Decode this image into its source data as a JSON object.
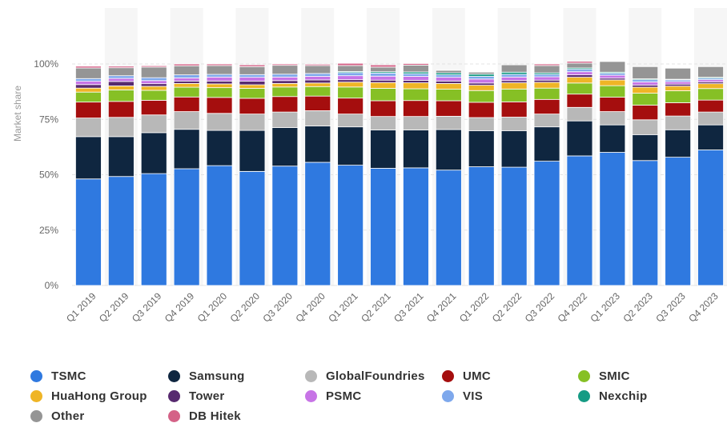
{
  "chart_data": {
    "type": "bar",
    "stacked": true,
    "title": "",
    "xlabel": "",
    "ylabel": "Market share",
    "ylim": [
      0,
      100
    ],
    "yticks": [
      "0%",
      "25%",
      "50%",
      "75%",
      "100%"
    ],
    "grid": true,
    "legend_position": "bottom",
    "categories": [
      "Q1 2019",
      "Q2 2019",
      "Q3 2019",
      "Q4 2019",
      "Q1 2020",
      "Q2 2020",
      "Q3 2020",
      "Q4 2020",
      "Q1 2021",
      "Q2 2021",
      "Q3 2021",
      "Q4 2021",
      "Q1 2022",
      "Q2 2022",
      "Q3 2022",
      "Q4 2022",
      "Q1 2023",
      "Q2 2023",
      "Q3 2023",
      "Q4 2023"
    ],
    "series": [
      {
        "name": "TSMC",
        "color": "#2f79e0",
        "values": [
          48.1,
          49.2,
          50.5,
          52.7,
          54.1,
          51.5,
          53.9,
          55.6,
          54.3,
          52.9,
          53.1,
          52.1,
          53.6,
          53.4,
          56.1,
          58.5,
          60.1,
          56.4,
          57.9,
          61.2
        ]
      },
      {
        "name": "Samsung",
        "color": "#0f2640",
        "values": [
          19.1,
          18.0,
          18.5,
          17.8,
          15.9,
          18.5,
          17.4,
          16.4,
          17.3,
          17.3,
          17.1,
          18.3,
          16.3,
          16.5,
          15.5,
          15.8,
          12.4,
          11.7,
          12.4,
          11.3
        ]
      },
      {
        "name": "GlobalFoundries",
        "color": "#b8b8b8",
        "values": [
          8.4,
          8.7,
          8.0,
          8.0,
          7.7,
          7.4,
          7.0,
          6.9,
          5.8,
          6.1,
          6.1,
          6.0,
          5.9,
          6.1,
          5.8,
          6.1,
          6.0,
          6.7,
          6.2,
          5.8
        ]
      },
      {
        "name": "UMC",
        "color": "#a50e0e",
        "values": [
          7.2,
          7.2,
          6.6,
          6.6,
          7.2,
          7.1,
          7.0,
          6.6,
          7.2,
          7.1,
          7.2,
          7.0,
          6.9,
          6.9,
          6.6,
          6.0,
          6.5,
          6.6,
          6.0,
          5.4
        ]
      },
      {
        "name": "SMIC",
        "color": "#86c025",
        "values": [
          4.5,
          5.2,
          4.5,
          4.4,
          4.4,
          4.5,
          4.3,
          4.3,
          5.0,
          5.6,
          5.3,
          5.2,
          5.3,
          5.8,
          5.1,
          5.0,
          5.2,
          5.4,
          5.4,
          5.2
        ]
      },
      {
        "name": "HuaHong Group",
        "color": "#efb526",
        "values": [
          1.8,
          1.8,
          1.8,
          1.7,
          1.7,
          1.6,
          1.6,
          1.6,
          2.2,
          2.6,
          2.7,
          2.6,
          2.4,
          2.8,
          2.6,
          2.6,
          2.6,
          2.7,
          2.1,
          2.2
        ]
      },
      {
        "name": "Tower",
        "color": "#572a6f",
        "values": [
          1.6,
          2.0,
          1.2,
          1.1,
          1.3,
          1.6,
          1.3,
          1.4,
          1.1,
          1.1,
          1.1,
          1.1,
          1.0,
          1.0,
          1.0,
          1.1,
          0.8,
          1.0,
          0.9,
          0.8
        ]
      },
      {
        "name": "PSMC",
        "color": "#c774e6",
        "values": [
          1.5,
          1.4,
          1.4,
          1.4,
          1.8,
          1.8,
          1.6,
          1.6,
          1.8,
          1.8,
          1.8,
          1.7,
          1.8,
          1.6,
          1.5,
          1.4,
          1.3,
          1.4,
          1.1,
          1.0
        ]
      },
      {
        "name": "VIS",
        "color": "#7ea8ec",
        "values": [
          1.2,
          1.2,
          1.3,
          1.4,
          1.2,
          1.2,
          1.3,
          1.3,
          1.4,
          1.4,
          1.2,
          1.1,
          1.2,
          1.2,
          1.1,
          1.1,
          0.9,
          1.0,
          0.8,
          0.7
        ]
      },
      {
        "name": "Nexchip",
        "color": "#169b84",
        "values": [
          0.0,
          0.0,
          0.0,
          0.0,
          0.0,
          0.0,
          0.0,
          0.0,
          0.5,
          0.6,
          0.8,
          0.9,
          1.0,
          1.0,
          0.7,
          0.6,
          0.5,
          0.4,
          0.3,
          0.4
        ]
      },
      {
        "name": "Other",
        "color": "#959595",
        "values": [
          4.8,
          3.6,
          4.8,
          4.1,
          4.0,
          3.6,
          4.0,
          3.6,
          2.7,
          2.1,
          3.1,
          1.1,
          0.9,
          3.3,
          3.3,
          2.2,
          4.8,
          5.5,
          5.0,
          4.8
        ]
      },
      {
        "name": "DB Hitek",
        "color": "#d46287",
        "values": [
          0.8,
          0.7,
          0.6,
          0.8,
          0.7,
          0.8,
          0.6,
          0.6,
          1.0,
          1.0,
          0.7,
          0.0,
          0.0,
          0.0,
          0.7,
          0.8,
          0.0,
          0.0,
          0.0,
          0.0
        ]
      }
    ]
  }
}
